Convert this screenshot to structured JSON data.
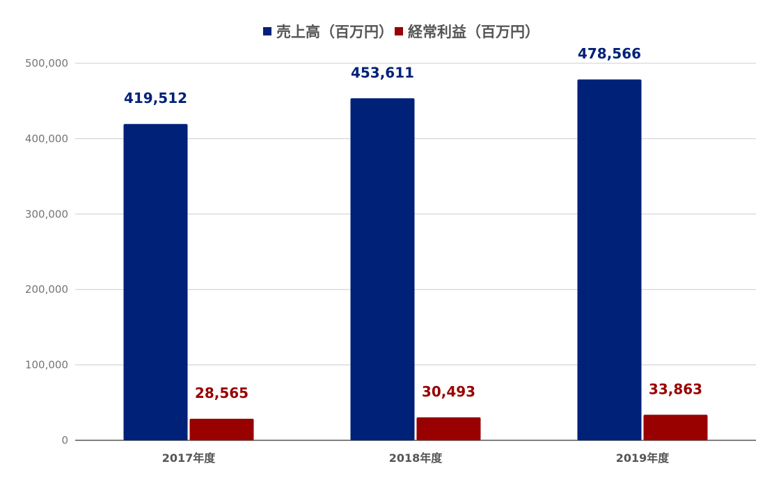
{
  "chart_data": {
    "type": "bar",
    "categories": [
      "2017年度",
      "2018年度",
      "2019年度"
    ],
    "series": [
      {
        "name": "売上高（百万円）",
        "color": "#002178",
        "values": [
          419512,
          453611,
          478566
        ],
        "labels": [
          "419,512",
          "453,611",
          "478,566"
        ]
      },
      {
        "name": "経常利益（百万円）",
        "color": "#990000",
        "values": [
          28565,
          30493,
          33863
        ],
        "labels": [
          "28,565",
          "30,493",
          "33,863"
        ]
      }
    ],
    "yticks": [
      0,
      100000,
      200000,
      300000,
      400000,
      500000
    ],
    "ytick_labels": [
      "0",
      "100,000",
      "200,000",
      "300,000",
      "400,000",
      "500,000"
    ],
    "ylim": [
      0,
      500000
    ],
    "grid": true,
    "legend_position": "top-center",
    "title": "",
    "xlabel": "",
    "ylabel": ""
  }
}
